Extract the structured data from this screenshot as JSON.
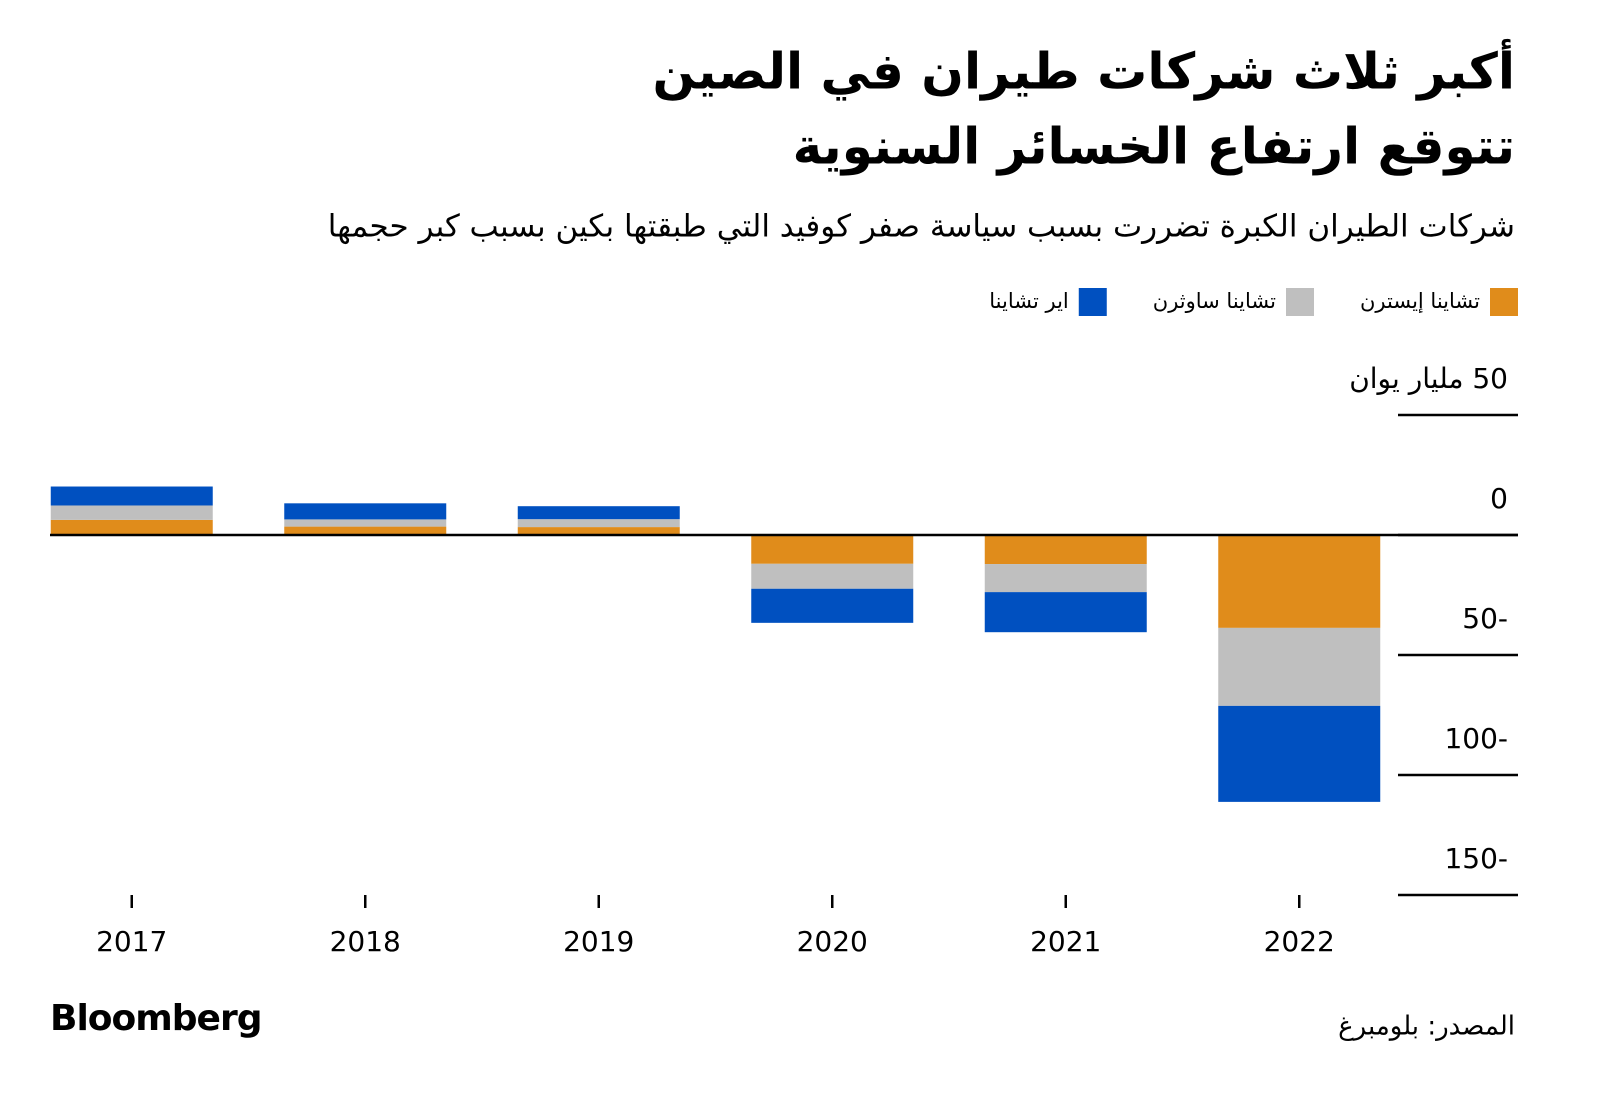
{
  "chart_data": {
    "type": "bar",
    "title": [
      "أكبر ثلاث شركات طيران في الصين",
      "تتوقع ارتفاع الخسائر السنوية"
    ],
    "subtitle": "شركات الطيران الكبرة تضررت بسبب سياسة صفر كوفيد التي طبقتها بكين بسبب كبر حجمها",
    "categories": [
      "2017",
      "2018",
      "2019",
      "2020",
      "2021",
      "2022"
    ],
    "series": [
      {
        "name": "تشاينا إيسترن",
        "color": "#e08c1b",
        "values": [
          6.3,
          3.5,
          3.3,
          -12,
          -12.1,
          -38.7
        ]
      },
      {
        "name": "تشاينا ساوثرن",
        "color": "#bfbfbf",
        "values": [
          6,
          3,
          3.3,
          -10.4,
          -11.7,
          -32.5
        ]
      },
      {
        "name": "اير تشاينا",
        "color": "#0050c0",
        "values": [
          7.9,
          6.7,
          5.4,
          -14.2,
          -16.7,
          -40
        ]
      }
    ],
    "stacked": true,
    "ylim": [
      -150,
      50
    ],
    "yticks": [
      {
        "value": 50,
        "label": "50 مليار يوان"
      },
      0,
      -50,
      -100,
      -150
    ],
    "source": "المصدر: بلومبرغ",
    "brand": "Bloomberg"
  }
}
